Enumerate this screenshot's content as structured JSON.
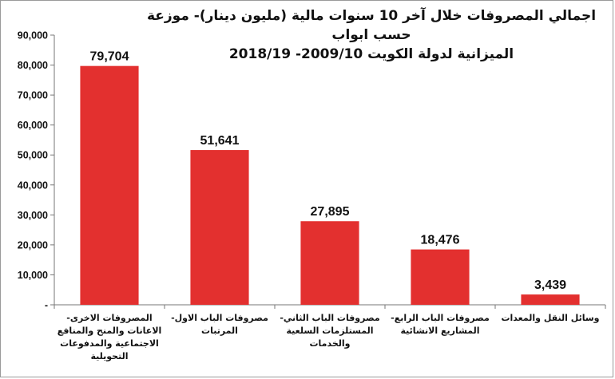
{
  "chart_data": {
    "type": "bar",
    "title_line1": "اجمالي المصروفات خلال آخر 10 سنوات مالية (مليون دينار)- موزعة حسب  ابواب",
    "title_line2": "الميزانية لدولة الكويت 2009/10- 2018/19",
    "categories": [
      [
        "المصروفات الاخرى-",
        "الاعانات والمنح والمنافع",
        "الاجتماعية والمدفوعات",
        "التحويلية"
      ],
      [
        "مصروفات الباب الاول-",
        "المرتبات"
      ],
      [
        "مصروفات الباب الثاني-",
        "المستلزمات السلعية",
        "والخدمات"
      ],
      [
        "مصروفات الباب الرابع-",
        "المشاريع الانشائية"
      ],
      [
        "وسائل النقل والمعدات"
      ]
    ],
    "values": [
      79704,
      51641,
      27895,
      18476,
      3439
    ],
    "data_labels": [
      "79,704",
      "51,641",
      "27,895",
      "18,476",
      "3,439"
    ],
    "ylim": [
      0,
      90000
    ],
    "yticks": [
      0,
      10000,
      20000,
      30000,
      40000,
      50000,
      60000,
      70000,
      80000,
      90000
    ],
    "ytick_labels": [
      "-",
      "10,000",
      "20,000",
      "30,000",
      "40,000",
      "50,000",
      "60,000",
      "70,000",
      "80,000",
      "90,000"
    ],
    "bar_color": "#e3302f",
    "grid": false,
    "legend": "none"
  }
}
